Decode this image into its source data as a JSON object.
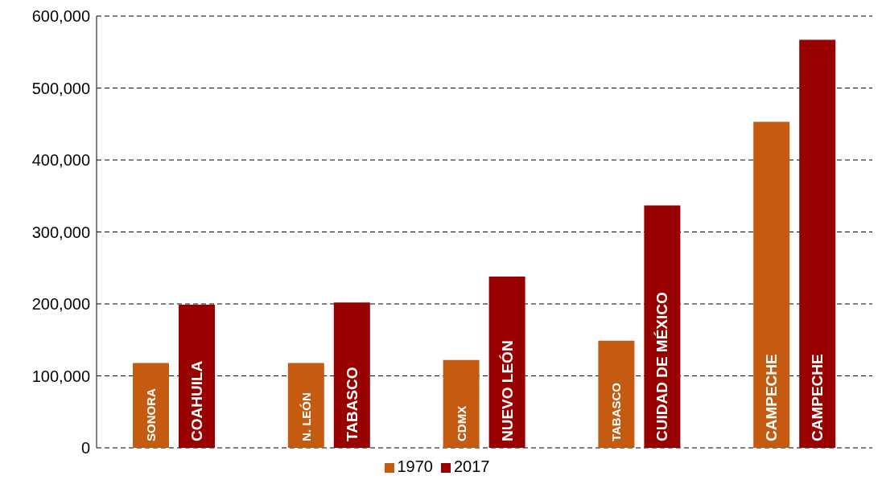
{
  "chart_data": {
    "type": "bar",
    "categories": [
      null,
      null,
      null,
      null,
      null
    ],
    "series": [
      {
        "name": "1970",
        "color": "#c55a11",
        "values": [
          118000,
          118000,
          122000,
          149000,
          453000
        ],
        "value_labels": [
          "SONORA",
          "N. LEÓN",
          "CDMX",
          "TABASCO",
          "CAMPECHE"
        ]
      },
      {
        "name": "2017",
        "color": "#990000",
        "values": [
          199000,
          202000,
          238000,
          337000,
          567000
        ],
        "value_labels": [
          "COAHUILA",
          "TABASCO",
          "NUEVO LEÓN",
          "CUIDAD DE MÉXICO",
          "CAMPECHE"
        ]
      }
    ],
    "ylim": [
      0,
      600000
    ],
    "yticks": [
      0,
      {
        "value": 100000,
        "label": "100,000"
      },
      {
        "value": 200000,
        "label": "200,000"
      },
      {
        "value": 300000,
        "label": "300,000"
      },
      {
        "value": 400000,
        "label": "400,000"
      },
      {
        "value": 500000,
        "label": "500,000"
      },
      {
        "value": 600000,
        "label": "600,000"
      }
    ],
    "grid": "y",
    "legend": "bottom"
  }
}
